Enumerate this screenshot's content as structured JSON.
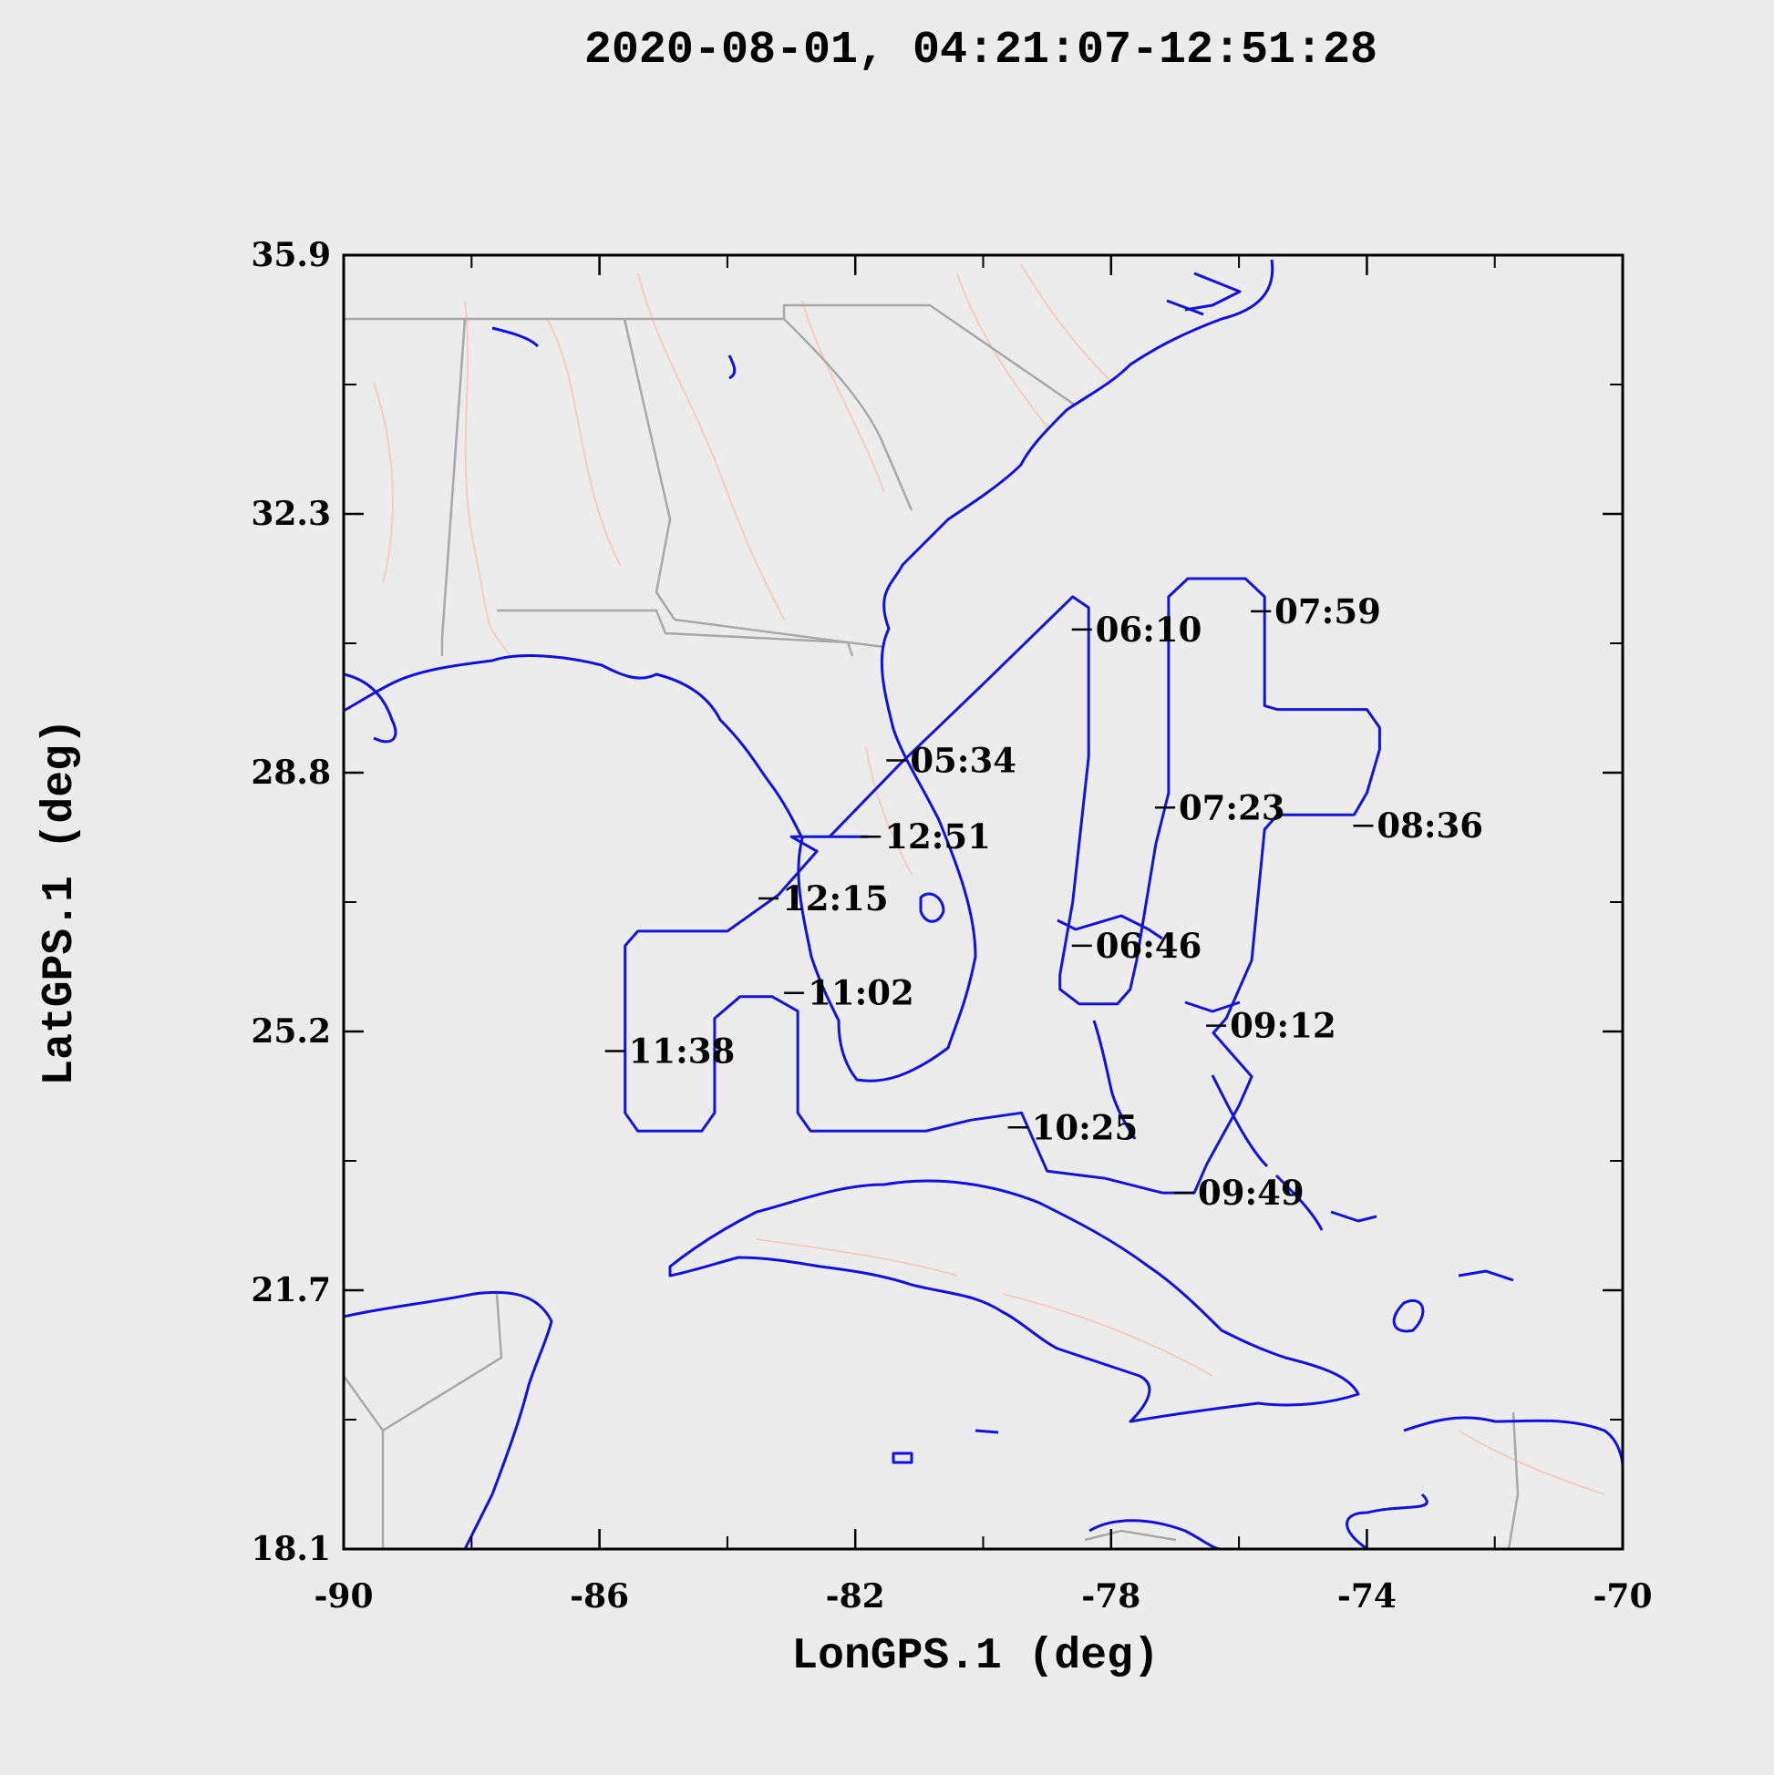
{
  "title": "2020-08-01, 04:21:07-12:51:28",
  "chart_data": {
    "type": "map-track",
    "xlabel": "LonGPS.1 (deg)",
    "ylabel": "LatGPS.1 (deg)",
    "xlim": [
      -90,
      -70
    ],
    "ylim": [
      18.1,
      35.9
    ],
    "x_ticks": [
      "-90",
      "-86",
      "-82",
      "-78",
      "-74",
      "-70"
    ],
    "y_ticks": [
      "35.9",
      "32.3",
      "28.8",
      "25.2",
      "21.7",
      "18.1"
    ],
    "track": [
      [
        -82.4,
        27.9
      ],
      [
        -81.3,
        28.9
      ],
      [
        -80.0,
        30.0
      ],
      [
        -78.6,
        31.2
      ],
      [
        -78.35,
        31.05
      ],
      [
        -78.35,
        29.0
      ],
      [
        -78.6,
        27.0
      ],
      [
        -78.8,
        26.0
      ],
      [
        -78.8,
        25.8
      ],
      [
        -78.5,
        25.6
      ],
      [
        -77.9,
        25.6
      ],
      [
        -77.7,
        25.8
      ],
      [
        -77.6,
        26.2
      ],
      [
        -77.3,
        27.8
      ],
      [
        -77.1,
        28.5
      ],
      [
        -77.1,
        31.2
      ],
      [
        -76.8,
        31.45
      ],
      [
        -75.9,
        31.45
      ],
      [
        -75.6,
        31.2
      ],
      [
        -75.6,
        29.7
      ],
      [
        -75.4,
        29.65
      ],
      [
        -74.0,
        29.65
      ],
      [
        -73.8,
        29.4
      ],
      [
        -73.8,
        29.1
      ],
      [
        -74.0,
        28.5
      ],
      [
        -74.2,
        28.2
      ],
      [
        -75.4,
        28.2
      ],
      [
        -75.6,
        28.0
      ],
      [
        -75.8,
        26.2
      ],
      [
        -76.2,
        25.4
      ],
      [
        -76.4,
        25.2
      ],
      [
        -75.8,
        24.6
      ],
      [
        -76.0,
        24.2
      ],
      [
        -76.5,
        23.4
      ],
      [
        -76.7,
        23.0
      ],
      [
        -77.2,
        23.0
      ],
      [
        -78.1,
        23.2
      ],
      [
        -79.0,
        23.3
      ],
      [
        -79.2,
        23.7
      ],
      [
        -79.4,
        24.1
      ],
      [
        -80.2,
        24.0
      ],
      [
        -80.9,
        23.85
      ],
      [
        -82.7,
        23.85
      ],
      [
        -82.9,
        24.1
      ],
      [
        -82.9,
        25.5
      ],
      [
        -83.3,
        25.7
      ],
      [
        -83.8,
        25.7
      ],
      [
        -84.2,
        25.4
      ],
      [
        -84.2,
        24.1
      ],
      [
        -84.4,
        23.85
      ],
      [
        -85.4,
        23.85
      ],
      [
        -85.6,
        24.1
      ],
      [
        -85.6,
        26.4
      ],
      [
        -85.4,
        26.6
      ],
      [
        -84.0,
        26.6
      ],
      [
        -83.2,
        27.1
      ],
      [
        -82.6,
        27.7
      ],
      [
        -83.0,
        27.9
      ],
      [
        -81.8,
        27.9
      ]
    ],
    "time_labels": [
      {
        "text": "05:34",
        "lon": -81.2,
        "lat": 28.95
      },
      {
        "text": "06:10",
        "lon": -78.3,
        "lat": 30.75
      },
      {
        "text": "06:46",
        "lon": -78.3,
        "lat": 26.4
      },
      {
        "text": "07:23",
        "lon": -77.0,
        "lat": 28.3
      },
      {
        "text": "07:59",
        "lon": -75.5,
        "lat": 31.0
      },
      {
        "text": "08:36",
        "lon": -73.9,
        "lat": 28.05
      },
      {
        "text": "09:12",
        "lon": -76.2,
        "lat": 25.3
      },
      {
        "text": "09:49",
        "lon": -76.7,
        "lat": 23.0
      },
      {
        "text": "10:25",
        "lon": -79.3,
        "lat": 23.9
      },
      {
        "text": "11:02",
        "lon": -82.8,
        "lat": 25.75
      },
      {
        "text": "11:38",
        "lon": -85.6,
        "lat": 24.95
      },
      {
        "text": "12:15",
        "lon": -83.2,
        "lat": 27.05
      },
      {
        "text": "12:51",
        "lon": -81.6,
        "lat": 27.9
      }
    ]
  }
}
